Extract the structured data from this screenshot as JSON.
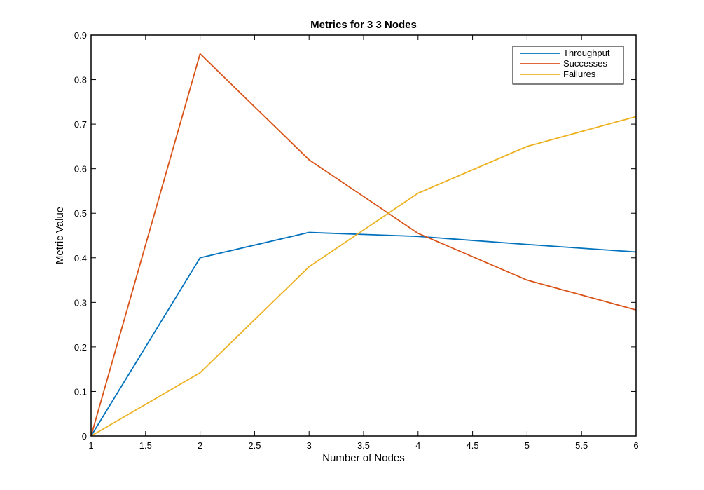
{
  "chart_data": {
    "type": "line",
    "title": "Metrics for 3 3 Nodes",
    "xlabel": "Number of Nodes",
    "ylabel": "Metric Value",
    "xlim": [
      1,
      6
    ],
    "ylim": [
      0,
      0.9
    ],
    "x_ticks": [
      "1",
      "1.5",
      "2",
      "2.5",
      "3",
      "3.5",
      "4",
      "4.5",
      "5",
      "5.5",
      "6"
    ],
    "y_ticks": [
      "0",
      "0.1",
      "0.2",
      "0.3",
      "0.4",
      "0.5",
      "0.6",
      "0.7",
      "0.8",
      "0.9"
    ],
    "grid": false,
    "legend_position": "top-right",
    "x": [
      1,
      2,
      3,
      4,
      5,
      6
    ],
    "series": [
      {
        "name": "Throughput",
        "color": "#0072bd",
        "values": [
          0,
          0.4,
          0.457,
          0.448,
          0.43,
          0.413
        ]
      },
      {
        "name": "Successes",
        "color": "#d95319",
        "values": [
          0,
          0.858,
          0.62,
          0.455,
          0.35,
          0.283
        ]
      },
      {
        "name": "Failures",
        "color": "#edb120",
        "values": [
          0,
          0.142,
          0.38,
          0.545,
          0.65,
          0.717
        ]
      }
    ]
  }
}
